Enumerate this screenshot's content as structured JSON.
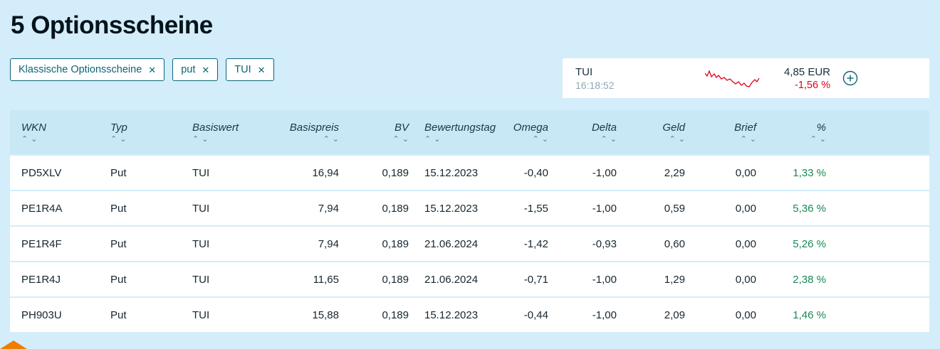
{
  "page": {
    "title": "5 Optionsscheine"
  },
  "filters": {
    "remove_icon": "✕",
    "chips": [
      {
        "label": "Klassische Optionsscheine"
      },
      {
        "label": "put"
      },
      {
        "label": "TUI"
      }
    ]
  },
  "quote_card": {
    "name": "TUI",
    "time": "16:18:52",
    "price": "4,85 EUR",
    "change": "-1,56 %",
    "sparkline_points": [
      [
        0,
        8
      ],
      [
        3,
        12
      ],
      [
        6,
        5
      ],
      [
        9,
        13
      ],
      [
        13,
        9
      ],
      [
        16,
        14
      ],
      [
        19,
        11
      ],
      [
        23,
        16
      ],
      [
        27,
        14
      ],
      [
        31,
        18
      ],
      [
        35,
        16
      ],
      [
        39,
        20
      ],
      [
        43,
        23
      ],
      [
        47,
        20
      ],
      [
        51,
        25
      ],
      [
        55,
        22
      ],
      [
        58,
        26
      ],
      [
        62,
        27
      ],
      [
        66,
        21
      ],
      [
        70,
        17
      ],
      [
        73,
        20
      ],
      [
        76,
        15
      ]
    ]
  },
  "table": {
    "columns": [
      "WKN",
      "Typ",
      "Basiswert",
      "Basispreis",
      "BV",
      "Bewertungstag",
      "Omega",
      "Delta",
      "Geld",
      "Brief",
      "%"
    ],
    "rows": [
      [
        "PD5XLV",
        "Put",
        "TUI",
        "16,94",
        "0,189",
        "15.12.2023",
        "-0,40",
        "-1,00",
        "2,29",
        "0,00",
        "1,33 %"
      ],
      [
        "PE1R4A",
        "Put",
        "TUI",
        "7,94",
        "0,189",
        "15.12.2023",
        "-1,55",
        "-1,00",
        "0,59",
        "0,00",
        "5,36 %"
      ],
      [
        "PE1R4F",
        "Put",
        "TUI",
        "7,94",
        "0,189",
        "21.06.2024",
        "-1,42",
        "-0,93",
        "0,60",
        "0,00",
        "5,26 %"
      ],
      [
        "PE1R4J",
        "Put",
        "TUI",
        "11,65",
        "0,189",
        "21.06.2024",
        "-0,71",
        "-1,00",
        "1,29",
        "0,00",
        "2,38 %"
      ],
      [
        "PH903U",
        "Put",
        "TUI",
        "15,88",
        "0,189",
        "15.12.2023",
        "-0,44",
        "-1,00",
        "2,09",
        "0,00",
        "1,46 %"
      ]
    ]
  },
  "colors": {
    "accent_teal": "#0c6575",
    "negative_red": "#e3001b",
    "positive_green": "#178a52",
    "page_bg": "#d3edfa",
    "header_bg": "#c9e8f6"
  }
}
